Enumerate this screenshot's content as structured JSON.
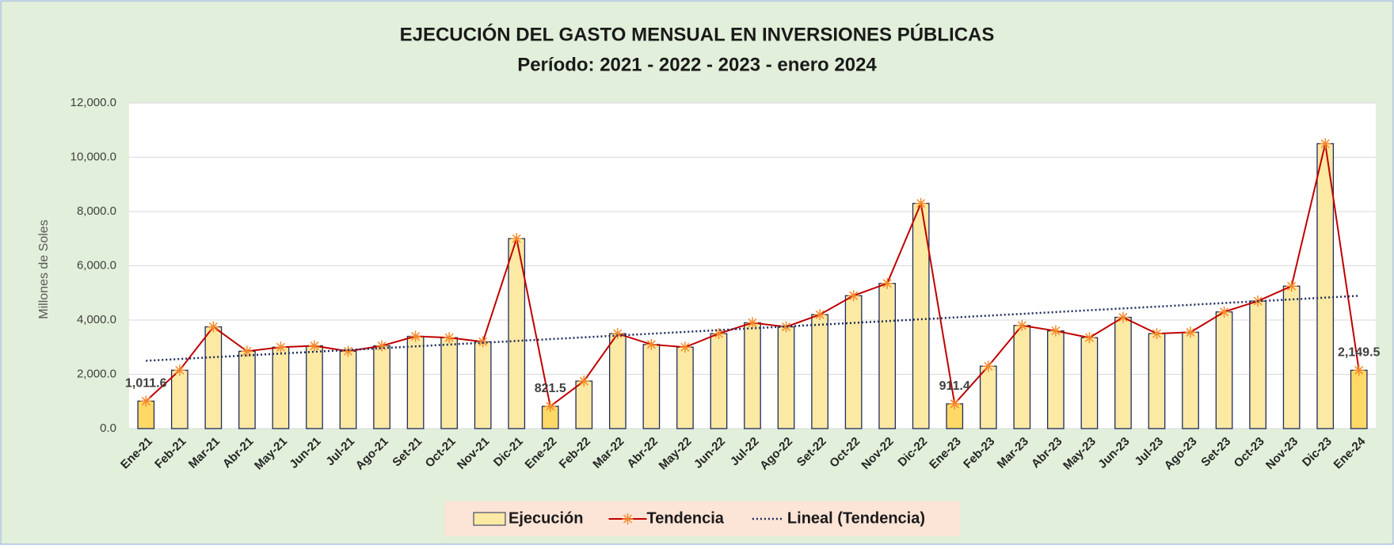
{
  "chart_data": {
    "type": "bar_line",
    "title": "EJECUCIÓN DEL GASTO MENSUAL EN INVERSIONES PÚBLICAS",
    "subtitle": "Período: 2021 - 2022 - 2023 - enero 2024",
    "y_label": "Millones de Soles",
    "categories": [
      "Ene-21",
      "Feb-21",
      "Mar-21",
      "Abr-21",
      "May-21",
      "Jun-21",
      "Jul-21",
      "Ago-21",
      "Set-21",
      "Oct-21",
      "Nov-21",
      "Dic-21",
      "Ene-22",
      "Feb-22",
      "Mar-22",
      "Abr-22",
      "May-22",
      "Jun-22",
      "Jul-22",
      "Ago-22",
      "Set-22",
      "Oct-22",
      "Nov-22",
      "Dic-22",
      "Ene-23",
      "Feb-23",
      "Mar-23",
      "Abr-23",
      "May-23",
      "Jun-23",
      "Jul-23",
      "Ago-23",
      "Set-23",
      "Oct-23",
      "Nov-23",
      "Dic-23",
      "Ene-24"
    ],
    "series": [
      {
        "name": "Ejecución",
        "kind": "bar",
        "color": "#fce9a4",
        "highlight_color": "#ffd966",
        "values": [
          1011.6,
          2150,
          3750,
          2850,
          3000,
          3050,
          2850,
          3050,
          3400,
          3350,
          3200,
          7000,
          821.5,
          1750,
          3500,
          3100,
          3000,
          3500,
          3900,
          3750,
          4200,
          4900,
          5350,
          8300,
          911.4,
          2300,
          3800,
          3600,
          3350,
          4100,
          3500,
          3550,
          4300,
          4700,
          5250,
          10500,
          2149.5
        ],
        "value_labels": [
          "1,011.6",
          null,
          null,
          null,
          null,
          null,
          null,
          null,
          null,
          null,
          null,
          null,
          "821.5",
          null,
          null,
          null,
          null,
          null,
          null,
          null,
          null,
          null,
          null,
          null,
          "911.4",
          null,
          null,
          null,
          null,
          null,
          null,
          null,
          null,
          null,
          null,
          null,
          "2,149.5"
        ]
      },
      {
        "name": "Tendencia",
        "kind": "line",
        "color": "#c00000",
        "values": [
          1011.6,
          2150,
          3750,
          2850,
          3000,
          3050,
          2850,
          3050,
          3400,
          3350,
          3200,
          7000,
          821.5,
          1750,
          3500,
          3100,
          3000,
          3500,
          3900,
          3750,
          4200,
          4900,
          5350,
          8300,
          911.4,
          2300,
          3800,
          3600,
          3350,
          4100,
          3500,
          3550,
          4300,
          4700,
          5250,
          10500,
          2149.5
        ]
      },
      {
        "name": "Lineal (Tendencia)",
        "kind": "trend",
        "color": "#1f2d5c"
      }
    ],
    "ylim": [
      0,
      12000
    ],
    "yticks": [
      {
        "value": 0,
        "label": "0.0"
      },
      {
        "value": 2000,
        "label": "2,000.0"
      },
      {
        "value": 4000,
        "label": "4,000.0"
      },
      {
        "value": 6000,
        "label": "6,000.0"
      },
      {
        "value": 8000,
        "label": "8,000.0"
      },
      {
        "value": 10000,
        "label": "10,000.0"
      },
      {
        "value": 12000,
        "label": "12,000.0"
      }
    ],
    "grid": true,
    "legend": "bottom"
  }
}
